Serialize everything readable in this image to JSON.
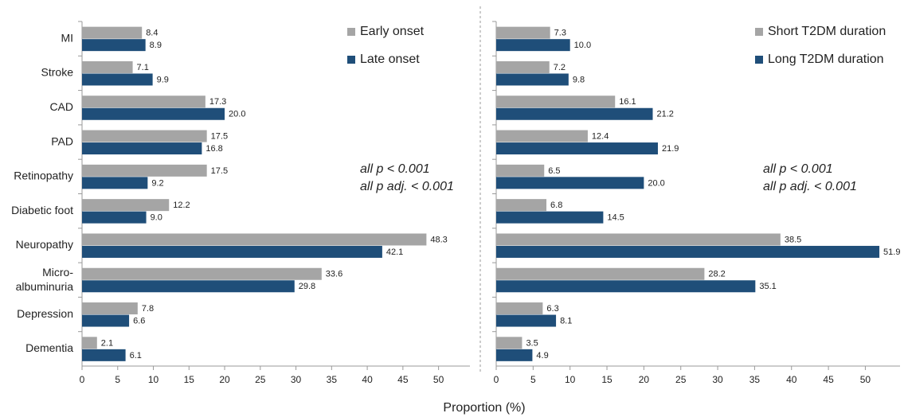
{
  "xlabel": "Proportion (%)",
  "chart_data": [
    {
      "type": "hbar",
      "categories": [
        "MI",
        "Stroke",
        "CAD",
        "PAD",
        "Retinopathy",
        "Diabetic foot",
        "Neuropathy",
        "Micro-\nalbuminuria",
        "Depression",
        "Dementia"
      ],
      "series": [
        {
          "name": "Early onset",
          "color": "#a5a5a5",
          "values": [
            8.4,
            7.1,
            17.3,
            17.5,
            17.5,
            12.2,
            48.3,
            33.6,
            7.8,
            2.1
          ],
          "value_labels": [
            "8.4",
            "7.1",
            "17.3",
            "17.5",
            "17.5",
            "12.2",
            "48.3",
            "33.6",
            "7.8",
            "2.1"
          ]
        },
        {
          "name": "Late onset",
          "color": "#1f4e79",
          "values": [
            8.9,
            9.9,
            20.0,
            16.8,
            9.2,
            9.0,
            42.1,
            29.8,
            6.6,
            6.1
          ],
          "value_labels": [
            "8.9",
            "9.9",
            "20.0",
            "16.8",
            "9.2",
            "9.0",
            "42.1",
            "29.8",
            "6.6",
            "6.1"
          ]
        }
      ],
      "xlim": [
        0,
        54.4
      ],
      "xticks": [
        0,
        5,
        10,
        15,
        20,
        25,
        30,
        35,
        40,
        45,
        50
      ],
      "annotations": [
        "all p < 0.001",
        "all p adj. < 0.001"
      ]
    },
    {
      "type": "hbar",
      "series": [
        {
          "name": "Short T2DM duration",
          "color": "#a5a5a5",
          "values": [
            7.3,
            7.2,
            16.1,
            12.4,
            6.5,
            6.8,
            38.5,
            28.2,
            6.3,
            3.5
          ],
          "value_labels": [
            "7.3",
            "7.2",
            "16.1",
            "12.4",
            "6.5",
            "6.8",
            "38.5",
            "28.2",
            "6.3",
            "3.5"
          ]
        },
        {
          "name": "Long T2DM duration",
          "color": "#1f4e79",
          "values": [
            10.0,
            9.8,
            21.2,
            21.9,
            20.0,
            14.5,
            51.9,
            35.1,
            8.1,
            4.9
          ],
          "value_labels": [
            "10.0",
            "9.8",
            "21.2",
            "21.9",
            "20.0",
            "14.5",
            "51.9",
            "35.1",
            "8.1",
            "4.9"
          ]
        }
      ],
      "xlim": [
        0,
        54.7
      ],
      "xticks": [
        0,
        5,
        10,
        15,
        20,
        25,
        30,
        35,
        40,
        45,
        50
      ],
      "annotations": [
        "all p < 0.001",
        "all p adj. < 0.001"
      ]
    }
  ]
}
